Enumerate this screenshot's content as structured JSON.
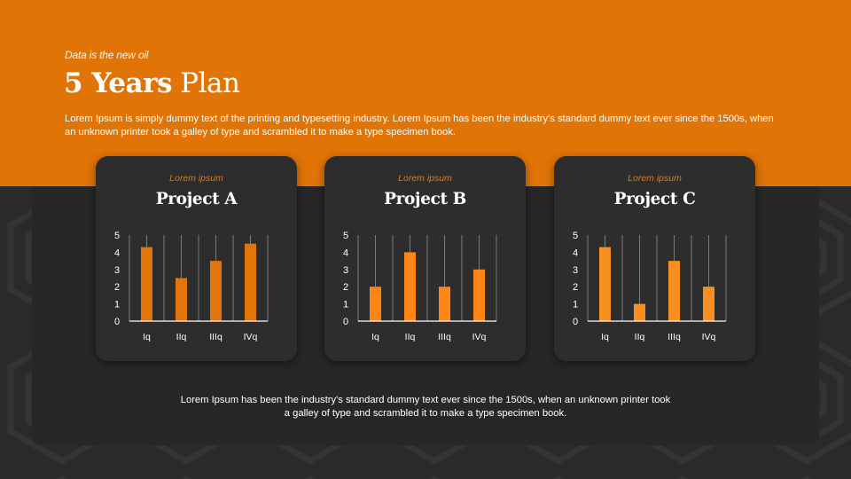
{
  "header": {
    "kicker": "Data is the new oil",
    "title_bold": "5 Years",
    "title_light": "Plan",
    "intro": "Lorem Ipsum is simply dummy text of the printing and typesetting industry. Lorem Ipsum has been the industry's standard dummy text ever since the 1500s, when an unknown printer took a galley of type and scrambled it to make a type specimen book."
  },
  "cards": [
    {
      "subtitle": "Lorem ipsum",
      "title": "Project A"
    },
    {
      "subtitle": "Lorem ipsum",
      "title": "Project B"
    },
    {
      "subtitle": "Lorem ipsum",
      "title": "Project C"
    }
  ],
  "footer": {
    "text": "Lorem Ipsum has been the industry's standard dummy text ever since the 1500s, when an unknown printer took a galley of type and scrambled it to make a type specimen book."
  },
  "colors": {
    "banner": "#E07406",
    "panel": "#272727",
    "card": "#2d2d2d",
    "accent_text": "#E07B14"
  },
  "chart_data": [
    {
      "type": "bar",
      "title": "Project A",
      "categories": [
        "Iq",
        "IIq",
        "IIIq",
        "IVq"
      ],
      "values": [
        4.3,
        2.5,
        3.5,
        4.5
      ],
      "color": "#E0760A",
      "yticks": [
        0,
        1,
        2,
        3,
        4,
        5
      ],
      "ylim": [
        0,
        5
      ],
      "xlabel": "",
      "ylabel": "",
      "grid": "vertical",
      "legend": "none"
    },
    {
      "type": "bar",
      "title": "Project B",
      "categories": [
        "Iq",
        "IIq",
        "IIIq",
        "IVq"
      ],
      "values": [
        2,
        4,
        2,
        3
      ],
      "color": "#FF8514",
      "yticks": [
        0,
        1,
        2,
        3,
        4,
        5
      ],
      "ylim": [
        0,
        5
      ],
      "xlabel": "",
      "ylabel": "",
      "grid": "vertical",
      "legend": "none"
    },
    {
      "type": "bar",
      "title": "Project C",
      "categories": [
        "Iq",
        "IIq",
        "IIIq",
        "IVq"
      ],
      "values": [
        4.3,
        1,
        3.5,
        2
      ],
      "color": "#F7901E",
      "yticks": [
        0,
        1,
        2,
        3,
        4,
        5
      ],
      "ylim": [
        0,
        5
      ],
      "xlabel": "",
      "ylabel": "",
      "grid": "vertical",
      "legend": "none"
    }
  ]
}
